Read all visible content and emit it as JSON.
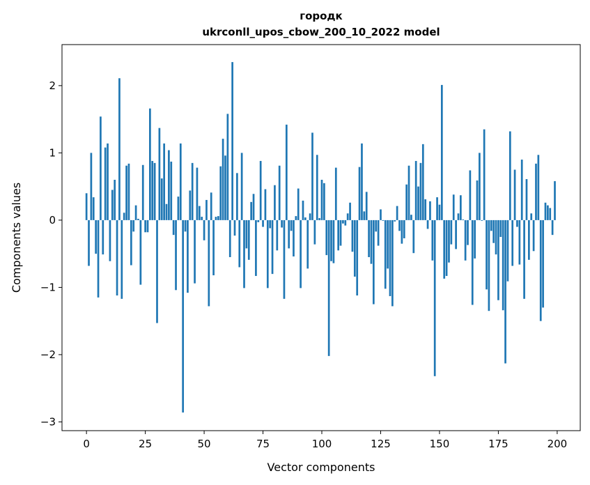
{
  "chart_data": {
    "type": "bar",
    "title": "городк",
    "subtitle": "ukrconll_upos_cbow_200_10_2022 model",
    "xlabel": "Vector components",
    "ylabel": "Components values",
    "xlim": [
      -10.4,
      209.8
    ],
    "ylim": [
      -3.13,
      2.61
    ],
    "xticks": [
      0,
      25,
      50,
      75,
      100,
      125,
      150,
      175,
      200
    ],
    "yticks": [
      -3,
      -2,
      -1,
      0,
      1,
      2
    ],
    "ytick_labels": [
      "−3",
      "−2",
      "−1",
      "0",
      "1",
      "2"
    ],
    "grid": false,
    "color": "#1f77b4",
    "values": [
      0.4,
      -0.68,
      1.0,
      0.34,
      -0.5,
      -1.15,
      1.54,
      -0.51,
      1.08,
      1.14,
      -0.61,
      0.45,
      0.6,
      -1.12,
      2.11,
      -1.17,
      0.11,
      0.81,
      0.84,
      -0.67,
      -0.17,
      0.22,
      0.02,
      -0.96,
      0.82,
      -0.18,
      -0.18,
      1.66,
      0.88,
      0.85,
      -1.53,
      1.37,
      0.62,
      1.14,
      0.24,
      1.04,
      0.87,
      -0.22,
      -1.04,
      0.35,
      1.14,
      -2.86,
      -0.17,
      -1.08,
      0.44,
      0.85,
      -0.94,
      0.78,
      0.21,
      0.05,
      -0.3,
      0.3,
      -1.28,
      0.41,
      -0.82,
      0.05,
      0.06,
      0.8,
      1.21,
      0.96,
      1.58,
      -0.55,
      2.35,
      -0.23,
      0.7,
      -0.7,
      1.0,
      -1.01,
      -0.42,
      -0.59,
      0.27,
      0.39,
      -0.83,
      -0.03,
      0.88,
      -0.1,
      0.46,
      -1.01,
      -0.12,
      -0.8,
      0.52,
      -0.45,
      0.81,
      -0.11,
      -1.17,
      1.42,
      -0.42,
      -0.16,
      -0.54,
      0.06,
      0.47,
      -1.01,
      0.29,
      0.04,
      -0.72,
      0.1,
      1.3,
      -0.36,
      0.97,
      0.03,
      0.6,
      0.55,
      -0.52,
      -2.02,
      -0.61,
      -0.64,
      0.78,
      -0.45,
      -0.38,
      -0.05,
      -0.08,
      0.1,
      0.26,
      -0.47,
      -0.84,
      -1.12,
      0.79,
      1.14,
      0.13,
      0.42,
      -0.55,
      -0.65,
      -1.25,
      -0.17,
      -0.38,
      0.16,
      -0.01,
      -1.02,
      -0.72,
      -1.13,
      -1.28,
      -0.02,
      0.21,
      -0.16,
      -0.35,
      -0.27,
      0.53,
      0.81,
      0.08,
      -0.49,
      0.88,
      0.5,
      0.85,
      1.13,
      0.31,
      -0.13,
      0.28,
      -0.6,
      -2.32,
      0.34,
      0.23,
      2.01,
      -0.87,
      -0.83,
      -0.63,
      -0.36,
      0.38,
      -0.43,
      0.1,
      0.37,
      0.01,
      -0.6,
      -0.37,
      0.74,
      -1.26,
      -0.57,
      0.59,
      1.0,
      -0.01,
      1.35,
      -1.03,
      -1.35,
      -0.16,
      -0.34,
      -0.51,
      -1.19,
      -0.25,
      -1.34,
      -2.13,
      -0.91,
      1.32,
      -0.68,
      0.75,
      -0.1,
      -0.66,
      0.9,
      -1.17,
      0.61,
      -0.59,
      0.1,
      -0.46,
      0.84,
      0.97,
      -1.5,
      -1.3,
      0.26,
      0.22,
      0.18,
      -0.22,
      0.58
    ]
  }
}
